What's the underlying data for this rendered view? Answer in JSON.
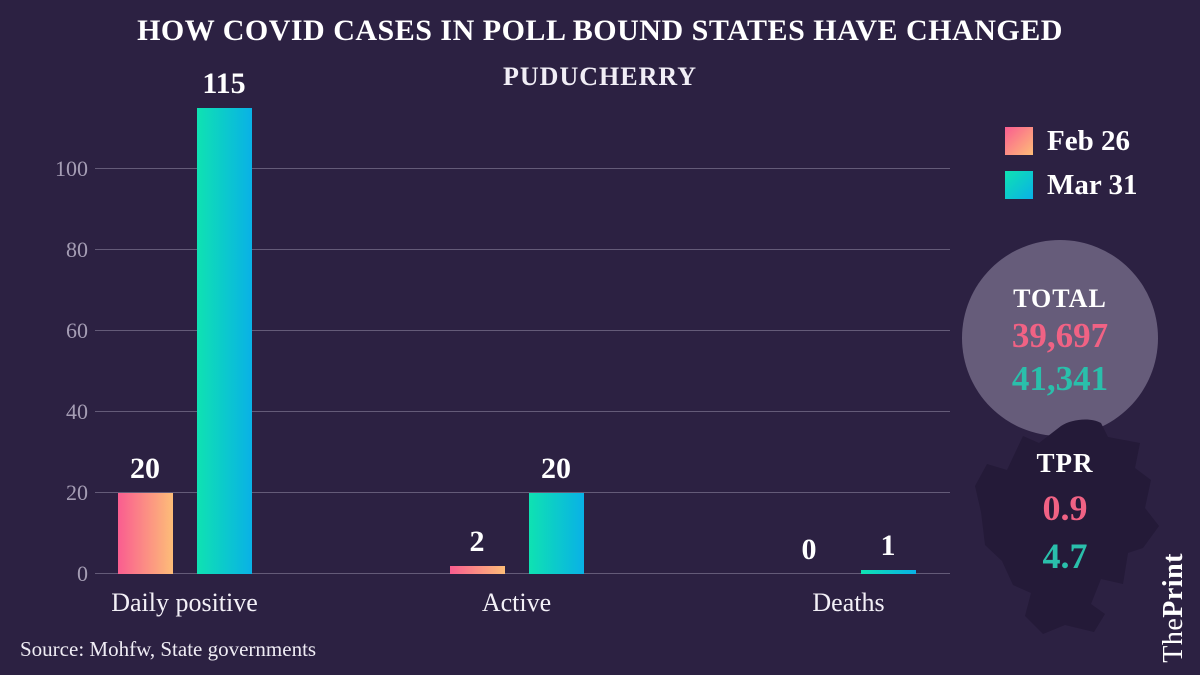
{
  "header": {
    "title": "HOW COVID CASES IN POLL BOUND STATES HAVE CHANGED",
    "subtitle": "PUDUCHERRY"
  },
  "chart_data": {
    "type": "bar",
    "title": "PUDUCHERRY",
    "categories": [
      "Daily positive",
      "Active",
      "Deaths"
    ],
    "series": [
      {
        "name": "Feb 26",
        "values": [
          20,
          2,
          0
        ],
        "gradient": [
          "#fa5d90",
          "#fdbd78"
        ]
      },
      {
        "name": "Mar 31",
        "values": [
          115,
          20,
          1
        ],
        "gradient": [
          "#0fe2b2",
          "#09b1e6"
        ]
      }
    ],
    "yticks": [
      0,
      20,
      40,
      60,
      80,
      100
    ],
    "ylim": [
      0,
      115
    ],
    "grid": true,
    "legend_position": "top-right",
    "xlabel": "",
    "ylabel": ""
  },
  "summary": {
    "total_label": "TOTAL",
    "total_feb26": "39,697",
    "total_mar31": "41,341",
    "tpr_label": "TPR",
    "tpr_feb26": "0.9",
    "tpr_mar31": "4.7"
  },
  "source": "Source: Mohfw, State governments",
  "brand": {
    "the": "The",
    "print": "Print"
  },
  "colors": {
    "background": "#2c2142",
    "circle_fill": "#665c7a",
    "map_silhouette": "#241a38",
    "feb26_text": "#f06284",
    "mar31_text": "#2abfab",
    "axis_label": "#a59db4",
    "gridline": "rgba(205,200,220,0.35)",
    "value_label": "#ffffff"
  }
}
